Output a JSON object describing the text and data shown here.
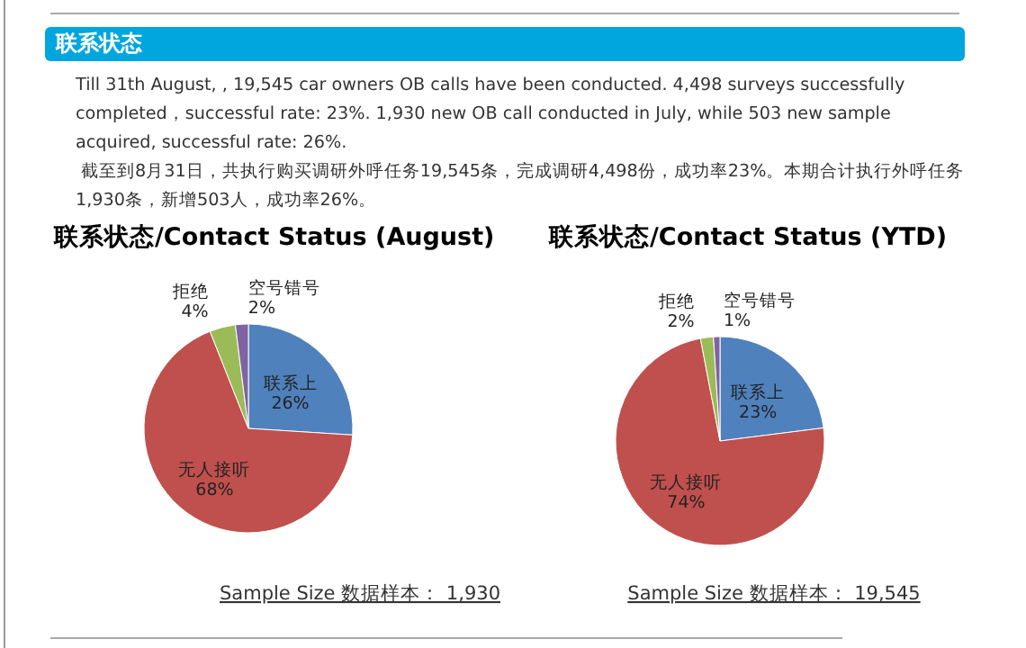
{
  "chart_data": [
    {
      "type": "other",
      "title": "联系状态",
      "annotations": [
        "Till 31th August, , 19,545 car owners OB calls have been conducted. 4,498 surveys successfully completed，successful rate: 23%. 1,930 new OB call conducted in July, while 503 new sample acquired, successful rate: 26%.",
        "截至到8月31日，共执行购买调研外呼任务19,545条，完成调研4,498份，成功率23%。本期合计执行外呼任务1,930条，新增503人，成功率26%。"
      ]
    },
    {
      "type": "pie",
      "title": "联系状态/Contact Status (August)",
      "categories": [
        "联系上",
        "无人接听",
        "拒绝",
        "空号错号"
      ],
      "values": [
        26,
        68,
        4,
        2
      ],
      "value_labels": [
        "26%",
        "68%",
        "4%",
        "2%"
      ],
      "colors": [
        "#4f81bd",
        "#c0504d",
        "#9bbb59",
        "#8064a2"
      ],
      "annotations": [
        "Sample Size 数据样本： 1,930"
      ]
    },
    {
      "type": "pie",
      "title": "联系状态/Contact Status (YTD)",
      "categories": [
        "联系上",
        "无人接听",
        "拒绝",
        "空号错号"
      ],
      "values": [
        23,
        74,
        2,
        1
      ],
      "value_labels": [
        "23%",
        "74%",
        "2%",
        "1%"
      ],
      "colors": [
        "#4f81bd",
        "#c0504d",
        "#9bbb59",
        "#8064a2"
      ],
      "annotations": [
        "Sample Size 数据样本： 19,545"
      ]
    }
  ]
}
